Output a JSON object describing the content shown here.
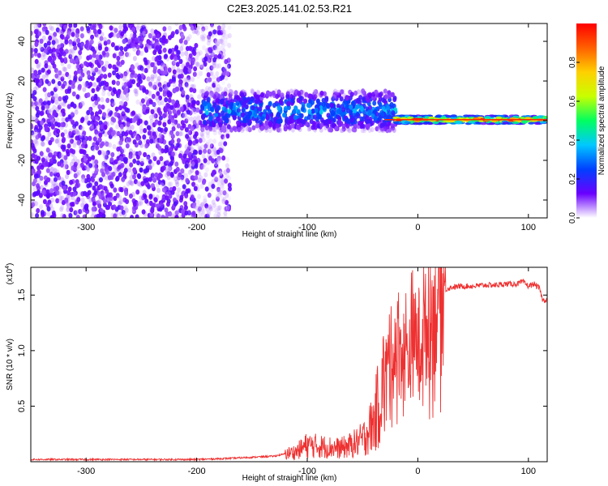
{
  "title": "C2E3.2025.141.02.53.R21",
  "colors": {
    "snr_line": "#ee3030",
    "spectrogram_background": "#ffffff",
    "axis": "#000000"
  },
  "chart_data": [
    {
      "type": "heatmap",
      "title": "C2E3.2025.141.02.53.R21",
      "xlabel": "Height of straight line (km)",
      "ylabel": "Frequency (Hz)",
      "xlim": [
        -350,
        117
      ],
      "ylim": [
        -49,
        49
      ],
      "xticks": [
        -300,
        -200,
        -100,
        0,
        100
      ],
      "yticks": [
        -40,
        -20,
        0,
        20,
        40
      ],
      "xtick_labels": [
        "-300",
        "-200",
        "-100",
        "0",
        "100"
      ],
      "ytick_labels": [
        "-40",
        "-20",
        "0",
        "20",
        "40"
      ],
      "colorbar": {
        "label": "Normalized spectral amplitude",
        "range": [
          0,
          1
        ],
        "ticks": [
          0.0,
          0.2,
          0.4,
          0.6,
          0.8
        ],
        "tick_labels": [
          "0.0",
          "0.2",
          "0.4",
          "0.6",
          "0.8"
        ],
        "colormap": [
          "#ffffff",
          "#6a00ff",
          "#0040ff",
          "#00c8ff",
          "#00ff60",
          "#c8ff00",
          "#ffd000",
          "#ff6000",
          "#ff0000"
        ]
      },
      "regions": [
        {
          "description_key": "noise",
          "x_range": [
            -350,
            -170
          ],
          "freq_range": [
            -49,
            49
          ],
          "amplitude": 0.12
        },
        {
          "description_key": "transition",
          "x_range": [
            -195,
            -20
          ],
          "freq_center": 5,
          "freq_halfwidth": 10,
          "amplitude": 0.35
        },
        {
          "description_key": "signal",
          "x_range": [
            -20,
            117
          ],
          "freq_center": 0.5,
          "freq_halfwidth": 2,
          "amplitude": 0.95
        }
      ]
    },
    {
      "type": "line",
      "xlabel": "Height of straight line (km)",
      "ylabel": "SNR (10 * v/v)",
      "y_multiplier_label": "(x10^4)",
      "y_multiplier_base": "(x10",
      "y_multiplier_exp": "4",
      "xlim": [
        -350,
        117
      ],
      "ylim": [
        0,
        1.75
      ],
      "xticks": [
        -300,
        -200,
        -100,
        0,
        100
      ],
      "xtick_labels": [
        "-300",
        "-200",
        "-100",
        "0",
        "100"
      ],
      "yticks": [
        0.5,
        1.0,
        1.5
      ],
      "ytick_labels": [
        "0.5",
        "1.0",
        "1.5"
      ],
      "series": [
        {
          "x": [
            -350,
            -300,
            -250,
            -200,
            -170,
            -150,
            -130,
            -110,
            -100,
            -90,
            -80,
            -70,
            -60,
            -50,
            -40,
            -35,
            -30,
            -25,
            -20,
            -15,
            -10,
            -5,
            0,
            5,
            10,
            15,
            20,
            25,
            30,
            40,
            50,
            60,
            70,
            80,
            90,
            95,
            100,
            105,
            110,
            113,
            117
          ],
          "values": [
            0.02,
            0.02,
            0.02,
            0.02,
            0.03,
            0.04,
            0.05,
            0.09,
            0.15,
            0.14,
            0.13,
            0.12,
            0.15,
            0.2,
            0.35,
            0.55,
            0.75,
            0.95,
            1.05,
            1.0,
            0.95,
            1.05,
            1.1,
            1.15,
            1.25,
            1.38,
            1.48,
            1.55,
            1.57,
            1.58,
            1.58,
            1.59,
            1.59,
            1.6,
            1.6,
            1.62,
            1.58,
            1.6,
            1.56,
            1.45,
            1.46
          ]
        }
      ]
    }
  ]
}
